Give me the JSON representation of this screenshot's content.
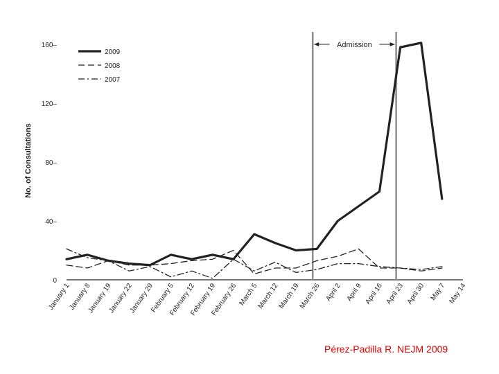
{
  "credit": "Pérez-Padilla R. NEJM 2009",
  "chart_data": {
    "type": "line",
    "ylabel": "No. of Consultations",
    "ylim": [
      0,
      160
    ],
    "yticks": [
      0,
      40,
      80,
      120,
      160
    ],
    "ytick_labels": [
      "0",
      "40–",
      "80–",
      "120–",
      "160–"
    ],
    "categories": [
      "January 1",
      "January 8",
      "January 19",
      "January 22",
      "January 29",
      "February 5",
      "February 12",
      "February 19",
      "February 26",
      "March 5",
      "March 12",
      "March 19",
      "March 26",
      "April 2",
      "April 9",
      "April 16",
      "April 23",
      "April 30",
      "May 7",
      "May 14"
    ],
    "series": [
      {
        "name": "2009",
        "style": "solid",
        "color": "#222222",
        "values": [
          14,
          17,
          13,
          11,
          10,
          17,
          14,
          17,
          14,
          31,
          25,
          20,
          21,
          40,
          50,
          60,
          158,
          161,
          55,
          null
        ]
      },
      {
        "name": "2008",
        "style": "dashed",
        "color": "#222222",
        "values": [
          10,
          8,
          13,
          10,
          10,
          11,
          13,
          14,
          20,
          4,
          8,
          8,
          13,
          16,
          21,
          8,
          8,
          6,
          8,
          null
        ]
      },
      {
        "name": "2007",
        "style": "dashdot",
        "color": "#222222",
        "values": [
          21,
          15,
          13,
          6,
          9,
          2,
          6,
          1,
          14,
          6,
          12,
          5,
          7,
          11,
          11,
          9,
          8,
          7,
          9,
          null
        ]
      }
    ],
    "vlines": [
      {
        "at": "March 26",
        "color": "#8c8c8c"
      },
      {
        "at": "April 23",
        "color": "#8c8c8c"
      }
    ],
    "annotation": {
      "text": "Admission",
      "from": "March 26",
      "to": "April 23"
    },
    "legend_position": "top-left",
    "grid": false
  }
}
